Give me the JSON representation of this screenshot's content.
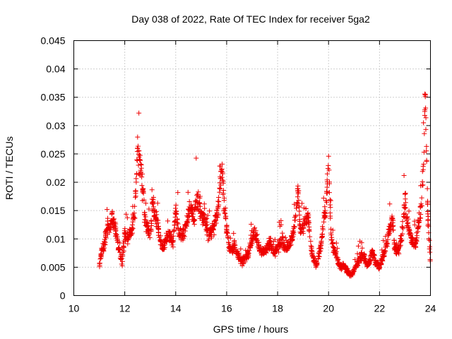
{
  "chart_data": {
    "type": "scatter",
    "title": "Day 038 of 2022, Rate Of TEC Index for receiver 5ga2",
    "xlabel": "GPS time / hours",
    "ylabel": "ROTI / TECUs",
    "xlim": [
      10,
      24
    ],
    "ylim": [
      0,
      0.045
    ],
    "xticks": [
      10,
      12,
      14,
      16,
      18,
      20,
      22,
      24
    ],
    "yticks": [
      0,
      0.005,
      0.01,
      0.015,
      0.02,
      0.025,
      0.03,
      0.035,
      0.04,
      0.045
    ],
    "xtick_labels": [
      "10",
      "12",
      "14",
      "16",
      "18",
      "20",
      "22",
      "24"
    ],
    "ytick_labels": [
      "0",
      "0.005",
      "0.01",
      "0.015",
      "0.02",
      "0.025",
      "0.03",
      "0.035",
      "0.04",
      "0.045"
    ],
    "grid": true,
    "marker": "+",
    "color": "#ee0000",
    "series": [
      {
        "name": "5ga2",
        "profile": [
          [
            11.0,
            0.005
          ],
          [
            11.1,
            0.008
          ],
          [
            11.2,
            0.009
          ],
          [
            11.3,
            0.0125
          ],
          [
            11.4,
            0.0115
          ],
          [
            11.5,
            0.0135
          ],
          [
            11.6,
            0.0125
          ],
          [
            11.7,
            0.01
          ],
          [
            11.8,
            0.0075
          ],
          [
            11.9,
            0.006
          ],
          [
            12.0,
            0.011
          ],
          [
            12.1,
            0.01
          ],
          [
            12.2,
            0.011
          ],
          [
            12.3,
            0.012
          ],
          [
            12.4,
            0.015
          ],
          [
            12.5,
            0.026
          ],
          [
            12.6,
            0.024
          ],
          [
            12.7,
            0.019
          ],
          [
            12.8,
            0.013
          ],
          [
            12.9,
            0.012
          ],
          [
            13.0,
            0.0105
          ],
          [
            13.1,
            0.016
          ],
          [
            13.2,
            0.014
          ],
          [
            13.3,
            0.0125
          ],
          [
            13.4,
            0.0095
          ],
          [
            13.5,
            0.0085
          ],
          [
            13.6,
            0.0095
          ],
          [
            13.7,
            0.011
          ],
          [
            13.8,
            0.01
          ],
          [
            13.9,
            0.0095
          ],
          [
            14.0,
            0.0155
          ],
          [
            14.1,
            0.012
          ],
          [
            14.2,
            0.0105
          ],
          [
            14.3,
            0.011
          ],
          [
            14.4,
            0.012
          ],
          [
            14.5,
            0.014
          ],
          [
            14.6,
            0.016
          ],
          [
            14.7,
            0.013
          ],
          [
            14.8,
            0.017
          ],
          [
            14.9,
            0.016
          ],
          [
            15.0,
            0.015
          ],
          [
            15.1,
            0.013
          ],
          [
            15.2,
            0.0125
          ],
          [
            15.3,
            0.011
          ],
          [
            15.4,
            0.0115
          ],
          [
            15.5,
            0.012
          ],
          [
            15.6,
            0.014
          ],
          [
            15.7,
            0.017
          ],
          [
            15.8,
            0.023
          ],
          [
            15.9,
            0.016
          ],
          [
            16.0,
            0.012
          ],
          [
            16.1,
            0.0085
          ],
          [
            16.2,
            0.008
          ],
          [
            16.3,
            0.0085
          ],
          [
            16.4,
            0.0075
          ],
          [
            16.5,
            0.0065
          ],
          [
            16.6,
            0.006
          ],
          [
            16.7,
            0.0065
          ],
          [
            16.8,
            0.007
          ],
          [
            16.9,
            0.0085
          ],
          [
            17.0,
            0.0095
          ],
          [
            17.1,
            0.011
          ],
          [
            17.2,
            0.0095
          ],
          [
            17.3,
            0.0085
          ],
          [
            17.4,
            0.0075
          ],
          [
            17.5,
            0.008
          ],
          [
            17.6,
            0.0085
          ],
          [
            17.7,
            0.009
          ],
          [
            17.8,
            0.0085
          ],
          [
            17.9,
            0.0075
          ],
          [
            18.0,
            0.0085
          ],
          [
            18.1,
            0.0095
          ],
          [
            18.2,
            0.0095
          ],
          [
            18.3,
            0.008
          ],
          [
            18.4,
            0.0085
          ],
          [
            18.5,
            0.0095
          ],
          [
            18.6,
            0.011
          ],
          [
            18.7,
            0.0135
          ],
          [
            18.8,
            0.018
          ],
          [
            18.9,
            0.0115
          ],
          [
            19.0,
            0.012
          ],
          [
            19.1,
            0.014
          ],
          [
            19.2,
            0.0135
          ],
          [
            19.3,
            0.009
          ],
          [
            19.4,
            0.0065
          ],
          [
            19.5,
            0.0055
          ],
          [
            19.6,
            0.007
          ],
          [
            19.7,
            0.0085
          ],
          [
            19.8,
            0.013
          ],
          [
            19.9,
            0.0155
          ],
          [
            20.0,
            0.024
          ],
          [
            20.1,
            0.0105
          ],
          [
            20.2,
            0.0085
          ],
          [
            20.3,
            0.007
          ],
          [
            20.4,
            0.0055
          ],
          [
            20.5,
            0.005
          ],
          [
            20.6,
            0.0055
          ],
          [
            20.7,
            0.0045
          ],
          [
            20.8,
            0.004
          ],
          [
            20.9,
            0.0035
          ],
          [
            21.0,
            0.0045
          ],
          [
            21.1,
            0.0055
          ],
          [
            21.2,
            0.0065
          ],
          [
            21.3,
            0.007
          ],
          [
            21.4,
            0.0065
          ],
          [
            21.5,
            0.0055
          ],
          [
            21.6,
            0.006
          ],
          [
            21.7,
            0.0075
          ],
          [
            21.8,
            0.0065
          ],
          [
            21.9,
            0.0055
          ],
          [
            22.0,
            0.005
          ],
          [
            22.1,
            0.0065
          ],
          [
            22.2,
            0.0075
          ],
          [
            22.3,
            0.0095
          ],
          [
            22.4,
            0.0115
          ],
          [
            22.5,
            0.0135
          ],
          [
            22.6,
            0.0085
          ],
          [
            22.7,
            0.008
          ],
          [
            22.8,
            0.0085
          ],
          [
            22.9,
            0.0115
          ],
          [
            23.0,
            0.0165
          ],
          [
            23.1,
            0.0125
          ],
          [
            23.2,
            0.011
          ],
          [
            23.3,
            0.0095
          ],
          [
            23.4,
            0.009
          ],
          [
            23.5,
            0.0115
          ],
          [
            23.6,
            0.0145
          ],
          [
            23.7,
            0.0195
          ],
          [
            23.8,
            0.034
          ],
          [
            23.9,
            0.014
          ],
          [
            24.0,
            0.0055
          ]
        ]
      }
    ]
  }
}
